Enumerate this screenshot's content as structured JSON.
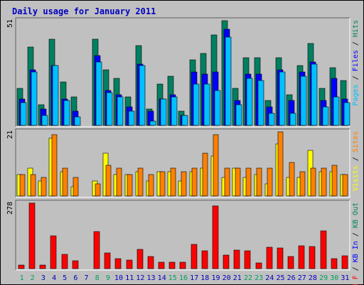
{
  "title": "Daily usage for January 2011",
  "chart_data": [
    {
      "type": "bar",
      "panel": "hits-files-pages",
      "categories": [
        "1",
        "2",
        "3",
        "4",
        "5",
        "6",
        "7",
        "8",
        "9",
        "10",
        "11",
        "12",
        "13",
        "14",
        "15",
        "16",
        "17",
        "18",
        "19",
        "20",
        "21",
        "22",
        "23",
        "24",
        "25",
        "26",
        "27",
        "28",
        "29",
        "30",
        "31"
      ],
      "scale_max": 51,
      "scale_label": "51",
      "axis_label_parts": [
        {
          "text": "Pages",
          "color": "#00c0ff"
        },
        {
          "text": " / ",
          "color": "#000000"
        },
        {
          "text": "Files",
          "color": "#0000ff"
        },
        {
          "text": " / ",
          "color": "#000000"
        },
        {
          "text": "Hits",
          "color": "#008060"
        }
      ],
      "series": [
        {
          "name": "Hits",
          "color": "#008060",
          "values": [
            18,
            38,
            10,
            42,
            21,
            14,
            0,
            42,
            27,
            23,
            14,
            39,
            8,
            20,
            24,
            7,
            32,
            35,
            44,
            51,
            18,
            33,
            33,
            12,
            33,
            15,
            29,
            40,
            18,
            28,
            22
          ]
        },
        {
          "name": "Files",
          "color": "#0000ff",
          "values": [
            13,
            27,
            8,
            29,
            13,
            7,
            0,
            34,
            17,
            15,
            9,
            30,
            7,
            13,
            15,
            5,
            26,
            25,
            26,
            47,
            12,
            25,
            25,
            9,
            27,
            12,
            26,
            31,
            12,
            23,
            13
          ]
        },
        {
          "name": "Pages",
          "color": "#00c0ff",
          "values": [
            11,
            26,
            5,
            29,
            12,
            4,
            0,
            31,
            16,
            14,
            7,
            29,
            2,
            13,
            14,
            5,
            20,
            20,
            17,
            43,
            10,
            23,
            22,
            6,
            26,
            6,
            24,
            30,
            9,
            14,
            11
          ]
        }
      ]
    },
    {
      "type": "bar",
      "panel": "visits-sites",
      "categories": [
        "1",
        "2",
        "3",
        "4",
        "5",
        "6",
        "7",
        "8",
        "9",
        "10",
        "11",
        "12",
        "13",
        "14",
        "15",
        "16",
        "17",
        "18",
        "19",
        "20",
        "21",
        "22",
        "23",
        "24",
        "25",
        "26",
        "27",
        "28",
        "29",
        "30",
        "31"
      ],
      "scale_max": 21,
      "scale_label": "21",
      "axis_label_parts": [
        {
          "text": "Visits",
          "color": "#ffff00"
        },
        {
          "text": " / ",
          "color": "#000000"
        },
        {
          "text": "Sites",
          "color": "#ff8000"
        }
      ],
      "series": [
        {
          "name": "Visits",
          "color": "#ffff00",
          "values": [
            7,
            9,
            5,
            19,
            8,
            3,
            0,
            5,
            14,
            7,
            7,
            8,
            5,
            8,
            8,
            5,
            8,
            9,
            13,
            6,
            9,
            6,
            7,
            4,
            17,
            6,
            6,
            15,
            8,
            8,
            7
          ]
        },
        {
          "name": "Sites",
          "color": "#ff8000",
          "values": [
            7,
            7,
            6,
            20,
            9,
            6,
            0,
            4,
            10,
            9,
            7,
            9,
            7,
            8,
            9,
            8,
            9,
            14,
            20,
            9,
            9,
            9,
            9,
            9,
            21,
            11,
            8,
            9,
            9,
            10,
            7
          ]
        }
      ]
    },
    {
      "type": "bar",
      "panel": "kbytes",
      "categories": [
        "1",
        "2",
        "3",
        "4",
        "5",
        "6",
        "7",
        "8",
        "9",
        "10",
        "11",
        "12",
        "13",
        "14",
        "15",
        "16",
        "17",
        "18",
        "19",
        "20",
        "21",
        "22",
        "23",
        "24",
        "25",
        "26",
        "27",
        "28",
        "29",
        "30",
        "31"
      ],
      "scale_max": 278,
      "scale_label": "278",
      "axis_label_parts": [
        {
          "text": "KB F",
          "color": "#ff0000"
        },
        {
          "text": " / ",
          "color": "#000000"
        },
        {
          "text": "KB In",
          "color": "#0000ff"
        },
        {
          "text": " / ",
          "color": "#000000"
        },
        {
          "text": "KB Out",
          "color": "#008060"
        }
      ],
      "series": [
        {
          "name": "KB F",
          "color": "#ff0000",
          "values": [
            15,
            278,
            15,
            140,
            60,
            33,
            0,
            158,
            65,
            41,
            35,
            83,
            50,
            28,
            28,
            28,
            103,
            75,
            265,
            58,
            80,
            75,
            25,
            90,
            88,
            50,
            97,
            93,
            160,
            41,
            55
          ]
        }
      ],
      "weekend_color": "#00a060",
      "weekday_color": "#0000c0",
      "weekend_days": [
        "1",
        "2",
        "8",
        "9",
        "15",
        "16",
        "22",
        "23",
        "29",
        "30"
      ]
    }
  ]
}
